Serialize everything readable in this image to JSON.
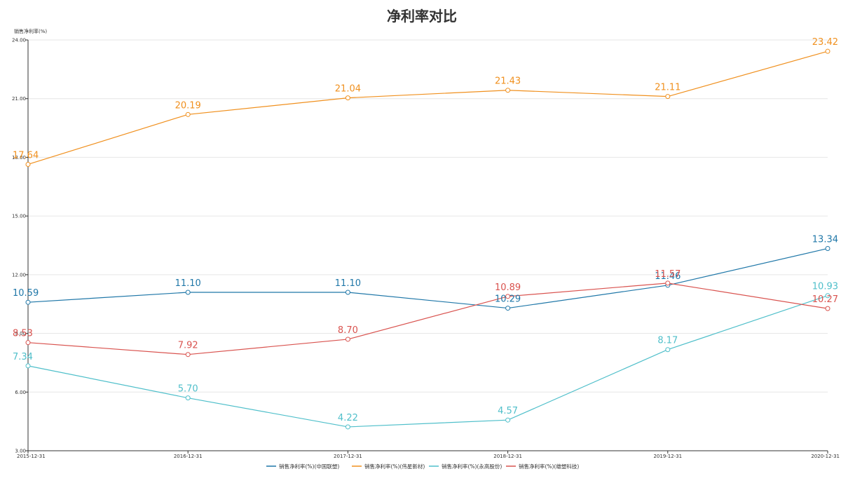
{
  "chart_data": {
    "type": "line",
    "title": "净利率对比",
    "ylabel": "销售净利率(%)",
    "xlabel": "",
    "ylim": [
      3,
      24
    ],
    "yticks": [
      "3.00",
      "6.00",
      "9.00",
      "12.00",
      "15.00",
      "18.00",
      "21.00",
      "24.00"
    ],
    "categories": [
      "2015-12-31",
      "2016-12-31",
      "2017-12-31",
      "2018-12-31",
      "2019-12-31",
      "2020-12-31"
    ],
    "grid": true,
    "legend_position": "bottom-center",
    "series": [
      {
        "name": "销售净利率(%)(中国联塑)",
        "color": "#1f77a8",
        "values": [
          10.59,
          11.1,
          11.1,
          10.29,
          11.46,
          13.34
        ],
        "labels": [
          "10.59",
          "11.10",
          "11.10",
          "10.29",
          "11.46",
          "13.34"
        ]
      },
      {
        "name": "销售净利率(%)(伟星新材)",
        "color": "#f0901e",
        "values": [
          17.64,
          20.19,
          21.04,
          21.43,
          21.11,
          23.42
        ],
        "labels": [
          "17.64",
          "20.19",
          "21.04",
          "21.43",
          "21.11",
          "23.42"
        ]
      },
      {
        "name": "销售净利率(%)(永高股份)",
        "color": "#4fbfca",
        "values": [
          7.34,
          5.7,
          4.22,
          4.57,
          8.17,
          10.93
        ],
        "labels": [
          "7.34",
          "5.70",
          "4.22",
          "4.57",
          "8.17",
          "10.93"
        ]
      },
      {
        "name": "销售净利率(%)(雄塑科技)",
        "color": "#d9534f",
        "values": [
          8.53,
          7.92,
          8.7,
          10.89,
          11.57,
          10.27
        ],
        "labels": [
          "8.53",
          "7.92",
          "8.70",
          "10.89",
          "11.57",
          "10.27"
        ]
      }
    ]
  }
}
